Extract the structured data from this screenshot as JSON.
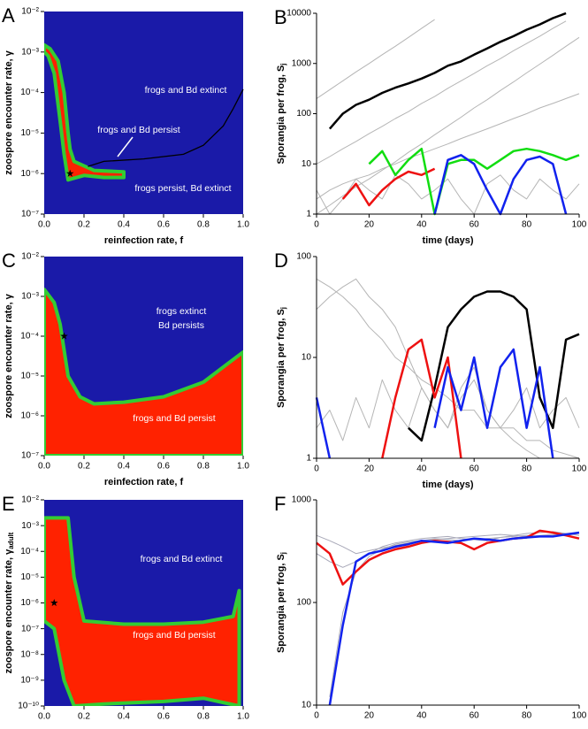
{
  "chart_data": [
    {
      "type": "heatmap",
      "panel": "A",
      "xlabel": "reinfection rate, f",
      "ylabel": "zoospore encounter rate, γ",
      "log_y": true,
      "background": "#1a1aa8",
      "region_color": "#ff2200",
      "edge_color": "#33cc33",
      "xlim": [
        0,
        1
      ],
      "xticks": [
        {
          "value": 0,
          "label": "0.0"
        },
        {
          "value": 0.2,
          "label": "0.2"
        },
        {
          "value": 0.4,
          "label": "0.4"
        },
        {
          "value": 0.6,
          "label": "0.6"
        },
        {
          "value": 0.8,
          "label": "0.8"
        },
        {
          "value": 1,
          "label": "1.0"
        }
      ],
      "ylim": [
        1e-07,
        0.01
      ],
      "yticks": [
        {
          "value": 1e-07,
          "label": "10⁻⁷"
        },
        {
          "value": 1e-06,
          "label": "10⁻⁶"
        },
        {
          "value": 1e-05,
          "label": "10⁻⁵"
        },
        {
          "value": 0.0001,
          "label": "10⁻⁴"
        },
        {
          "value": 0.001,
          "label": "10⁻³"
        },
        {
          "value": 0.01,
          "label": "10⁻²"
        }
      ],
      "region": {
        "x": [
          0,
          0.03,
          0.07,
          0.1,
          0.12,
          0.13,
          0.15,
          0.25,
          0.4,
          0.4,
          0.3,
          0.2,
          0.12,
          0.1,
          0.08,
          0.05,
          0.02,
          0
        ],
        "y": [
          0.0015,
          0.0012,
          0.0006,
          0.0001,
          1e-05,
          4e-06,
          2e-06,
          1.2e-06,
          1.1e-06,
          8e-07,
          8e-07,
          9e-07,
          7e-07,
          3e-06,
          2e-05,
          0.0003,
          0.0008,
          0.001
        ]
      },
      "boundary": {
        "x": [
          0.22,
          0.3,
          0.5,
          0.7,
          0.8,
          0.9,
          0.95,
          1.0
        ],
        "y": [
          1.5e-06,
          2e-06,
          2.3e-06,
          3e-06,
          5e-06,
          1.5e-05,
          4e-05,
          0.00012
        ]
      },
      "star": {
        "x": 0.13,
        "y": 1e-06
      },
      "annotations": [
        "frogs and Bd extinct",
        "frogs and Bd persist",
        "frogs persist, Bd extinct"
      ]
    },
    {
      "type": "line",
      "panel": "B",
      "xlabel": "time (days)",
      "ylabel": "Sporangia per frog, S",
      "ylabel_sub": "j",
      "log_y": true,
      "xlim": [
        0,
        100
      ],
      "xticks": [
        0,
        20,
        40,
        60,
        80,
        100
      ],
      "ylim": [
        1,
        10000
      ],
      "yticks": [
        1,
        10,
        100,
        1000,
        10000
      ],
      "x": [
        0,
        5,
        10,
        15,
        20,
        25,
        30,
        35,
        40,
        45,
        50,
        55,
        60,
        65,
        70,
        75,
        80,
        85,
        90,
        95,
        100
      ],
      "series": [
        {
          "color": "#b5b5b5",
          "values": [
            2,
            3,
            4,
            5,
            6,
            8,
            10,
            13,
            16,
            20,
            25,
            32,
            40,
            50,
            63,
            80,
            100,
            130,
            160,
            200,
            250
          ]
        },
        {
          "color": "#b5b5b5",
          "values": [
            10,
            14,
            20,
            28,
            40,
            56,
            80,
            110,
            160,
            220,
            320,
            450,
            630,
            900,
            1250,
            1800,
            2500,
            3500,
            5000,
            7000,
            null
          ]
        },
        {
          "color": "#b5b5b5",
          "values": [
            200,
            300,
            450,
            680,
            1000,
            1500,
            2200,
            3300,
            5000,
            7500,
            null,
            null,
            null,
            null,
            null,
            null,
            null,
            null,
            null,
            null,
            null
          ]
        },
        {
          "color": "#b5b5b5",
          "values": [
            3,
            1,
            2,
            5,
            3,
            2,
            6,
            4,
            2,
            3,
            5,
            2,
            1,
            4,
            6,
            3,
            2,
            5,
            3,
            2,
            4
          ]
        },
        {
          "color": "#b5b5b5",
          "values": [
            1,
            1.5,
            2.3,
            3.5,
            5,
            7.5,
            11,
            17,
            25,
            38,
            57,
            85,
            130,
            190,
            290,
            430,
            650,
            970,
            1450,
            2200,
            3300
          ]
        },
        {
          "color": "#000000",
          "values": [
            null,
            50,
            100,
            150,
            190,
            260,
            330,
            400,
            500,
            650,
            900,
            1100,
            1500,
            2000,
            2700,
            3500,
            4700,
            6000,
            8000,
            10000,
            null
          ]
        },
        {
          "color": "#ee1111",
          "values": [
            null,
            null,
            2,
            4,
            1.5,
            3,
            5,
            7,
            6,
            8,
            null,
            null,
            null,
            null,
            null,
            null,
            null,
            null,
            null,
            null,
            null
          ]
        },
        {
          "color": "#11dd11",
          "values": [
            null,
            null,
            null,
            null,
            10,
            18,
            6,
            12,
            20,
            1,
            10,
            12,
            12,
            8,
            12,
            18,
            20,
            18,
            15,
            12,
            15
          ]
        },
        {
          "color": "#1122ee",
          "values": [
            null,
            null,
            null,
            null,
            null,
            null,
            null,
            null,
            null,
            1,
            12,
            15,
            10,
            3,
            1,
            5,
            12,
            14,
            10,
            1,
            null
          ]
        }
      ]
    },
    {
      "type": "heatmap",
      "panel": "C",
      "xlabel": "reinfection rate, f",
      "ylabel": "zoospore encounter rate, γ",
      "log_y": true,
      "background": "#1a1aa8",
      "region_color": "#ff2200",
      "edge_color": "#33cc33",
      "xlim": [
        0,
        1
      ],
      "xticks": [
        {
          "value": 0,
          "label": "0.0"
        },
        {
          "value": 0.2,
          "label": "0.2"
        },
        {
          "value": 0.4,
          "label": "0.4"
        },
        {
          "value": 0.6,
          "label": "0.6"
        },
        {
          "value": 0.8,
          "label": "0.8"
        },
        {
          "value": 1,
          "label": "1.0"
        }
      ],
      "ylim": [
        1e-07,
        0.01
      ],
      "yticks": [
        {
          "value": 1e-07,
          "label": "10⁻⁷"
        },
        {
          "value": 1e-06,
          "label": "10⁻⁶"
        },
        {
          "value": 1e-05,
          "label": "10⁻⁵"
        },
        {
          "value": 0.0001,
          "label": "10⁻⁴"
        },
        {
          "value": 0.001,
          "label": "10⁻³"
        },
        {
          "value": 0.01,
          "label": "10⁻²"
        }
      ],
      "region": {
        "x": [
          0,
          0.05,
          0.08,
          0.12,
          0.18,
          0.25,
          0.4,
          0.6,
          0.8,
          1,
          1,
          0
        ],
        "y": [
          0.0015,
          0.0007,
          0.0002,
          1e-05,
          3e-06,
          2e-06,
          2.2e-06,
          3e-06,
          7e-06,
          4e-05,
          1e-07,
          1e-07
        ]
      },
      "star": {
        "x": 0.1,
        "y": 0.0001
      },
      "annotations": [
        "frogs extinct",
        "Bd persists",
        "frogs and Bd persist"
      ]
    },
    {
      "type": "line",
      "panel": "D",
      "xlabel": "time (days)",
      "ylabel": "Sporangia per frog, S",
      "ylabel_sub": "j",
      "log_y": true,
      "xlim": [
        0,
        100
      ],
      "xticks": [
        0,
        20,
        40,
        60,
        80,
        100
      ],
      "ylim": [
        1,
        100
      ],
      "yticks": [
        1,
        10,
        100
      ],
      "x": [
        0,
        5,
        10,
        15,
        20,
        25,
        30,
        35,
        40,
        45,
        50,
        55,
        60,
        65,
        70,
        75,
        80,
        85,
        90,
        95,
        100
      ],
      "series": [
        {
          "color": "#b5b5b5",
          "values": [
            60,
            50,
            40,
            30,
            20,
            15,
            10,
            8,
            6,
            5,
            4,
            3,
            3,
            2,
            2,
            2,
            1.5,
            1.5,
            1.2,
            1.1,
            1
          ]
        },
        {
          "color": "#b5b5b5",
          "values": [
            30,
            40,
            50,
            60,
            40,
            30,
            20,
            10,
            5,
            3,
            2,
            5,
            8,
            3,
            2,
            1.5,
            1.2,
            1,
            null,
            null,
            null
          ]
        },
        {
          "color": "#b5b5b5",
          "values": [
            2,
            3,
            1.5,
            4,
            2,
            6,
            3,
            2,
            5,
            3,
            2,
            4,
            6,
            3,
            2,
            3,
            5,
            2,
            3,
            4,
            2
          ]
        },
        {
          "color": "#000000",
          "values": [
            null,
            null,
            null,
            null,
            null,
            null,
            null,
            2,
            1.5,
            5,
            20,
            30,
            40,
            45,
            45,
            40,
            30,
            4,
            2,
            15,
            17
          ]
        },
        {
          "color": "#ee1111",
          "values": [
            null,
            null,
            null,
            null,
            null,
            1,
            4,
            12,
            15,
            4,
            10,
            1,
            null,
            null,
            null,
            null,
            null,
            null,
            null,
            null,
            null
          ]
        },
        {
          "color": "#1122ee",
          "values": [
            4,
            1,
            null,
            null,
            null,
            null,
            null,
            null,
            null,
            2,
            8,
            3,
            10,
            2,
            8,
            12,
            2,
            8,
            1,
            null,
            null
          ]
        }
      ]
    },
    {
      "type": "heatmap",
      "panel": "E",
      "xlabel": "reinfection rate, f",
      "ylabel": "zoospore encounter rate, γ",
      "ylabel_sub": "adult",
      "log_y": true,
      "background": "#1a1aa8",
      "region_color": "#ff2200",
      "edge_color": "#33cc33",
      "xlim": [
        0,
        1
      ],
      "xticks": [
        {
          "value": 0,
          "label": "0.0"
        },
        {
          "value": 0.2,
          "label": "0.2"
        },
        {
          "value": 0.4,
          "label": "0.4"
        },
        {
          "value": 0.6,
          "label": "0.6"
        },
        {
          "value": 0.8,
          "label": "0.8"
        },
        {
          "value": 1,
          "label": "1.0"
        }
      ],
      "ylim": [
        1e-10,
        0.01
      ],
      "yticks": [
        {
          "value": 1e-10,
          "label": "10⁻¹⁰"
        },
        {
          "value": 1e-09,
          "label": "10⁻⁹"
        },
        {
          "value": 1e-08,
          "label": "10⁻⁸"
        },
        {
          "value": 1e-07,
          "label": "10⁻⁷"
        },
        {
          "value": 1e-06,
          "label": "10⁻⁶"
        },
        {
          "value": 1e-05,
          "label": "10⁻⁵"
        },
        {
          "value": 0.0001,
          "label": "10⁻⁴"
        },
        {
          "value": 0.001,
          "label": "10⁻³"
        },
        {
          "value": 0.01,
          "label": "10⁻²"
        }
      ],
      "region": {
        "x": [
          0,
          0.12,
          0.15,
          0.2,
          0.4,
          0.6,
          0.8,
          0.95,
          0.98,
          0.98,
          0.8,
          0.6,
          0.3,
          0.15,
          0.1,
          0.05,
          0
        ],
        "y": [
          0.002,
          0.002,
          1e-05,
          2e-07,
          1.5e-07,
          1.5e-07,
          1.8e-07,
          3e-07,
          3e-06,
          1e-10,
          2e-10,
          1.5e-10,
          1.2e-10,
          1e-10,
          1e-09,
          1e-07,
          2e-07
        ]
      },
      "star": {
        "x": 0.05,
        "y": 1e-06
      },
      "annotations": [
        "frogs and Bd extinct",
        "frogs and Bd persist"
      ]
    },
    {
      "type": "line",
      "panel": "F",
      "xlabel": "time (days)",
      "ylabel": "Sporangia per frog, S",
      "ylabel_sub": "j",
      "log_y": true,
      "xlim": [
        0,
        100
      ],
      "xticks": [
        0,
        20,
        40,
        60,
        80,
        100
      ],
      "ylim": [
        10,
        1000
      ],
      "yticks": [
        10,
        100,
        1000
      ],
      "x": [
        0,
        5,
        10,
        15,
        20,
        25,
        30,
        35,
        40,
        45,
        50,
        55,
        60,
        65,
        70,
        75,
        80,
        85,
        90,
        95,
        100
      ],
      "series": [
        {
          "color": "#a8a8b8",
          "values": [
            450,
            400,
            350,
            300,
            320,
            340,
            360,
            380,
            400,
            410,
            420,
            430,
            440,
            450,
            460,
            450,
            440,
            450,
            460,
            470,
            480
          ]
        },
        {
          "color": "#a8a8b8",
          "values": [
            null,
            12,
            80,
            200,
            280,
            330,
            370,
            390,
            400,
            420,
            410,
            400,
            410,
            420,
            430,
            440,
            450,
            440,
            460,
            450,
            470
          ]
        },
        {
          "color": "#a8a8b8",
          "values": [
            300,
            250,
            220,
            250,
            300,
            350,
            380,
            400,
            420,
            430,
            440,
            420,
            410,
            400,
            430,
            450,
            470,
            480,
            490,
            470,
            450
          ]
        },
        {
          "color": "#ee1111",
          "values": [
            380,
            300,
            150,
            200,
            260,
            300,
            330,
            350,
            380,
            400,
            390,
            380,
            330,
            380,
            400,
            420,
            430,
            500,
            480,
            450,
            420
          ]
        },
        {
          "color": "#1122ee",
          "values": [
            null,
            10,
            60,
            250,
            300,
            320,
            350,
            370,
            400,
            390,
            380,
            400,
            420,
            410,
            400,
            420,
            430,
            440,
            440,
            460,
            480
          ]
        }
      ]
    }
  ]
}
